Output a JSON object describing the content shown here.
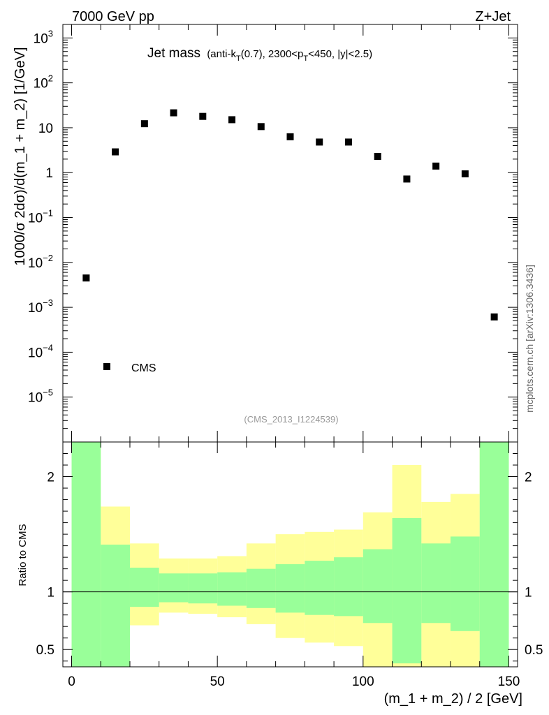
{
  "header": {
    "left": "7000 GeV pp",
    "right": "Z+Jet"
  },
  "side_label": "mcplots.cern.ch [arXiv:1306.3436]",
  "chart_data": [
    {
      "type": "scatter",
      "panel": "main",
      "title_main": "Jet mass",
      "title_detail_parts": [
        "(anti-k",
        "T",
        "(0.7), 2300<p",
        "T",
        "<450, |y|<2.5)"
      ],
      "ylabel": "1000/σ 2dσ)/d(m_1 + m_2) [1/GeV]",
      "yscale": "log",
      "ylim": [
        1e-06,
        2000
      ],
      "xlim": [
        -3,
        153
      ],
      "y_ticks": [
        {
          "value": 1000,
          "label_base": "10",
          "label_exp": "3"
        },
        {
          "value": 100,
          "label_base": "10",
          "label_exp": "2"
        },
        {
          "value": 10,
          "label_base": "10",
          "label_exp": ""
        },
        {
          "value": 1,
          "label_base": "1",
          "label_exp": ""
        },
        {
          "value": 0.1,
          "label_base": "10",
          "label_exp": "−1"
        },
        {
          "value": 0.01,
          "label_base": "10",
          "label_exp": "−2"
        },
        {
          "value": 0.001,
          "label_base": "10",
          "label_exp": "−3"
        },
        {
          "value": 0.0001,
          "label_base": "10",
          "label_exp": "−4"
        },
        {
          "value": 1e-05,
          "label_base": "10",
          "label_exp": "−5"
        }
      ],
      "legend": {
        "label": "CMS",
        "position": "bottom-left"
      },
      "analysis_id": "(CMS_2013_I1224539)",
      "series": [
        {
          "name": "CMS",
          "x": [
            5,
            15,
            25,
            35,
            45,
            55,
            65,
            75,
            85,
            95,
            105,
            115,
            125,
            135,
            145
          ],
          "y": [
            0.0045,
            2.9,
            12.3,
            21.5,
            17.9,
            15.1,
            10.6,
            6.3,
            4.8,
            4.8,
            2.3,
            0.72,
            1.4,
            0.94,
            0.00061
          ]
        }
      ]
    },
    {
      "type": "area",
      "panel": "ratio",
      "ylabel": "Ratio to CMS",
      "xlabel": "(m_1 + m_2) / 2 [GeV]",
      "ylim": [
        0.35,
        2.3
      ],
      "xlim": [
        -3,
        153
      ],
      "x_ticks": [
        0,
        50,
        100,
        150
      ],
      "y_ticks": [
        0.5,
        1,
        2
      ],
      "reference_line": 1,
      "bin_edges": [
        0,
        10,
        20,
        30,
        40,
        50,
        60,
        70,
        80,
        90,
        100,
        110,
        120,
        130,
        140,
        150
      ],
      "bands": [
        {
          "name": "stat-syst",
          "color": "#ffff99",
          "low": [
            0.35,
            0.7,
            0.71,
            0.82,
            0.81,
            0.78,
            0.72,
            0.6,
            0.56,
            0.53,
            0.35,
            0.35,
            0.35,
            0.35,
            0.35
          ],
          "high": [
            2.3,
            1.74,
            1.42,
            1.29,
            1.29,
            1.31,
            1.42,
            1.5,
            1.52,
            1.54,
            1.69,
            2.1,
            1.78,
            1.85,
            2.3
          ]
        },
        {
          "name": "stat",
          "color": "#99ff99",
          "low": [
            0.35,
            0.35,
            0.87,
            0.91,
            0.9,
            0.88,
            0.86,
            0.82,
            0.8,
            0.79,
            0.73,
            0.38,
            0.73,
            0.66,
            0.35
          ],
          "high": [
            2.3,
            1.41,
            1.21,
            1.16,
            1.16,
            1.17,
            1.2,
            1.24,
            1.27,
            1.3,
            1.37,
            1.64,
            1.42,
            1.48,
            2.3
          ]
        }
      ]
    }
  ]
}
